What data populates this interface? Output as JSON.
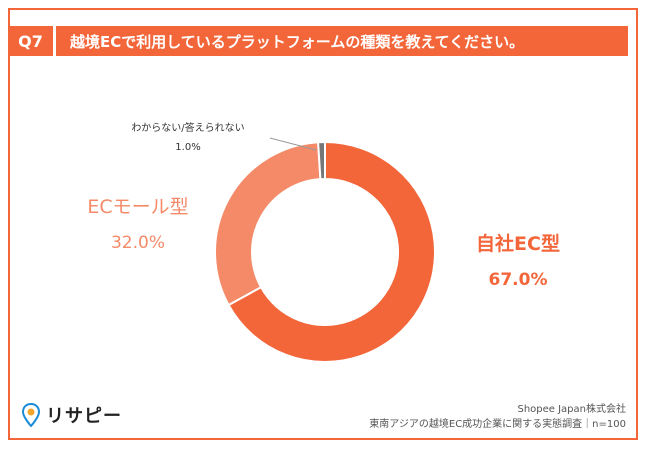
{
  "header": {
    "question_no": "Q7",
    "title": "越境ECで利用しているプラットフォームの種類を教えてください。"
  },
  "colors": {
    "accent": "#f3663a",
    "series": [
      "#f3663a",
      "#f58a68",
      "#777777"
    ]
  },
  "chart_data": {
    "type": "pie",
    "donut": true,
    "categories": [
      "自社EC型",
      "ECモール型",
      "わからない/答えられない"
    ],
    "values": [
      67.0,
      32.0,
      1.0
    ],
    "labels": [
      "67.0%",
      "32.0%",
      "1.0%"
    ]
  },
  "footer": {
    "logo_text": "リサピー",
    "source_line1": "Shopee Japan株式会社",
    "source_line2": "東南アジアの越境EC成功企業に関する実態調査｜n=100"
  },
  "icons": {
    "logo": "pin-icon"
  }
}
